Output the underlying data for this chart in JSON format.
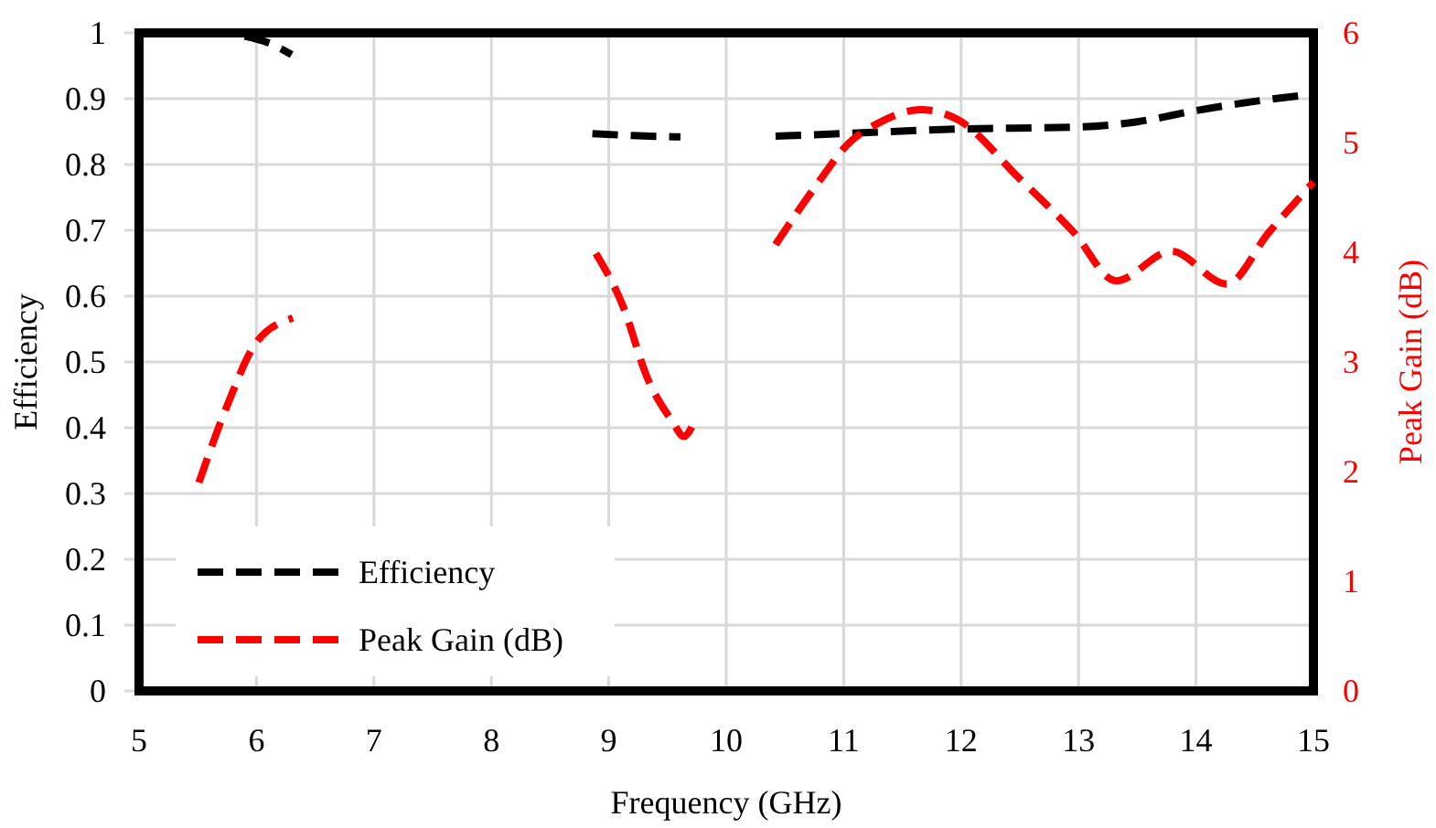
{
  "chart_data": {
    "type": "line",
    "xlabel": "Frequency (GHz)",
    "ylabel": "Efficiency",
    "y2label": "Peak Gain (dB)",
    "xlim": [
      5,
      15
    ],
    "xticks": [
      5,
      6,
      7,
      8,
      9,
      10,
      11,
      12,
      13,
      14,
      15
    ],
    "ylim": [
      0,
      1
    ],
    "yticks": [
      0,
      0.1,
      0.2,
      0.3,
      0.4,
      0.5,
      0.6,
      0.7,
      0.8,
      0.9,
      1
    ],
    "y2lim": [
      0,
      6
    ],
    "y2ticks": [
      0,
      1,
      2,
      3,
      4,
      5,
      6
    ],
    "grid": true,
    "legend": "bottom left",
    "line_style": "dashed",
    "marker": "none",
    "series": [
      {
        "name": "Efficiency",
        "color": "#000000",
        "x": [
          5.9,
          6.1,
          6.3,
          7.5,
          8.86,
          9.2,
          9.61,
          10,
          10.42,
          11,
          12,
          13,
          13.5,
          14,
          14.5,
          15
        ],
        "values": [
          0.995,
          0.985,
          0.967,
          null,
          0.847,
          0.844,
          0.842,
          null,
          0.843,
          0.847,
          0.854,
          0.857,
          0.865,
          0.882,
          0.896,
          0.907
        ]
      },
      {
        "name": "Peak Gain (dB)",
        "color": "#ff0000",
        "axis": "y2",
        "x": [
          5.51,
          5.75,
          6,
          6.31,
          7.5,
          8.89,
          9.12,
          9.33,
          9.54,
          9.64,
          9.73,
          10,
          10.42,
          10.78,
          11.04,
          11.3,
          11.66,
          11.97,
          12.49,
          12.96,
          13.32,
          13.79,
          14.26,
          14.62,
          15
        ],
        "values": [
          1.9,
          2.6,
          3.18,
          3.4,
          null,
          3.99,
          3.51,
          2.85,
          2.46,
          2.32,
          2.46,
          null,
          4.07,
          4.63,
          4.99,
          5.18,
          5.3,
          5.21,
          4.68,
          4.18,
          3.74,
          4.01,
          3.71,
          4.18,
          4.64
        ]
      }
    ]
  }
}
